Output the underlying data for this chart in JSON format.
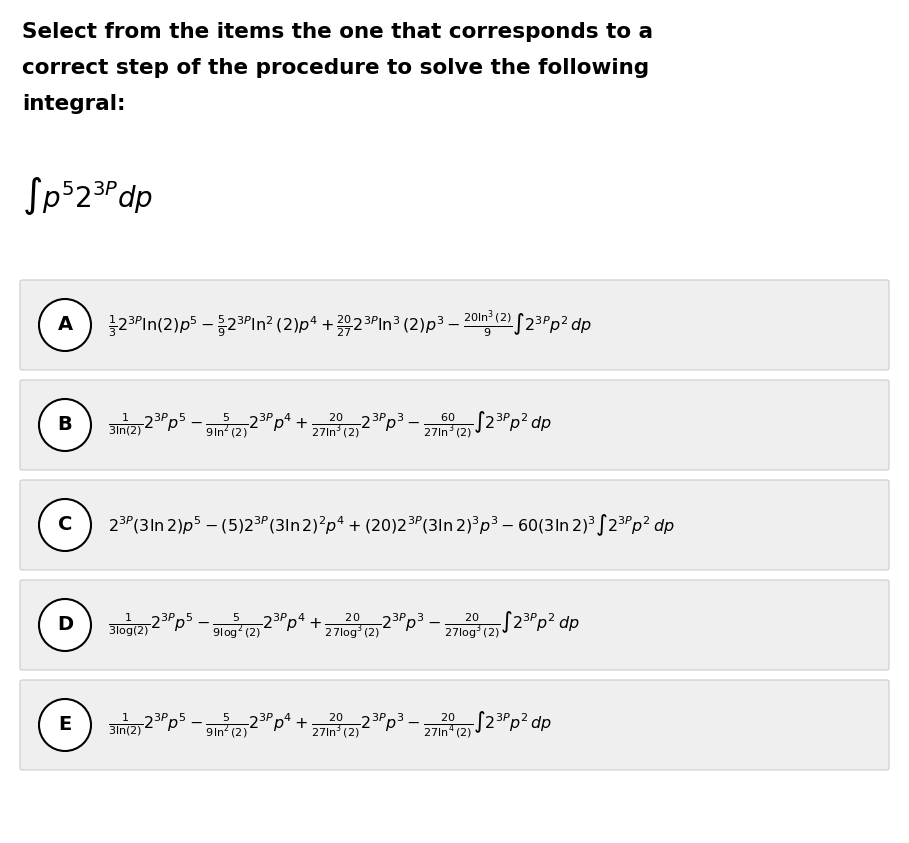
{
  "title_lines": [
    "Select from the items the one that corresponds to a",
    "correct step of the procedure to solve the following",
    "integral:"
  ],
  "integral": "$\\int p^52^{3P}dp$",
  "options": [
    {
      "label": "A"
    },
    {
      "label": "B"
    },
    {
      "label": "C"
    },
    {
      "label": "D"
    },
    {
      "label": "E"
    }
  ],
  "formula_A": "$\\frac{1}{3}2^{3P}\\ln(2)p^5 - \\frac{5}{9}2^{3P}\\ln^2(2)p^4 + \\frac{20}{27}2^{3P}\\ln^3(2)p^3 - \\frac{20\\ln^3(2)}{9}\\int 2^{3P}p^2\\,dp$",
  "formula_B": "$\\frac{1}{3\\ln(2)}2^{3P}p^5 - \\frac{5}{9\\ln^2(2)}2^{3P}p^4 + \\frac{20}{27\\ln^3(2)}2^{3P}p^3 - \\frac{60}{27\\ln^3(2)}\\int 2^{3P}p^2\\,dp$",
  "formula_C": "$2^{3P}(3\\ln2)p^5 - (5)2^{3P}(3\\ln2)^2p^4 + (20)2^{3P}(3\\ln2)^3p^3 - 60(3\\ln2)^3\\int 2^{3P}p^2\\,dp$",
  "formula_D": "$\\frac{1}{3\\log(2)}2^{3P}p^5 - \\frac{5}{9\\log^2(2)}2^{3P}p^4 + \\frac{20}{27\\log^3(2)}2^{3P}p^3 - \\frac{20}{27\\log^3(2)}\\int 2^{3P}p^2\\,dp$",
  "formula_E": "$\\frac{1}{3\\ln(2)}2^{3P}p^5 - \\frac{5}{9\\ln^2(2)}2^{3P}p^4 + \\frac{20}{27\\ln^3(2)}2^{3P}p^3 - \\frac{20}{27\\ln^4(2)}\\int 2^{3P}p^2\\,dp$",
  "bg_color": "#ffffff",
  "box_facecolor": "#efefef",
  "box_edgecolor": "#cccccc",
  "text_color": "#000000",
  "title_fontsize": 15.5,
  "formula_fontsize": 11.5,
  "integral_fontsize": 20,
  "label_fontsize": 14
}
